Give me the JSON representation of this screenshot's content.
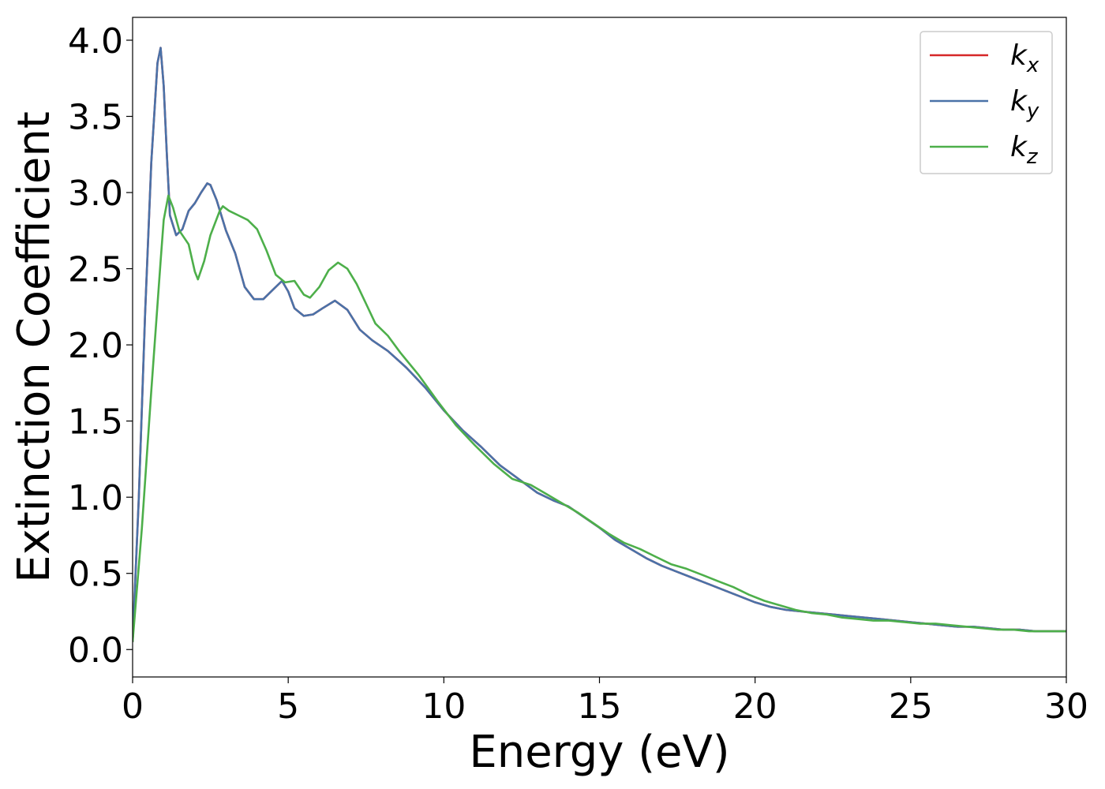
{
  "chart_data": {
    "type": "line",
    "xlabel": "Energy (eV)",
    "ylabel": "Extinction Coefficient",
    "xlim": [
      0,
      30
    ],
    "ylim": [
      -0.18,
      4.15
    ],
    "xticks": [
      0,
      5,
      10,
      15,
      20,
      25,
      30
    ],
    "xtick_labels": [
      "0",
      "5",
      "10",
      "15",
      "20",
      "25",
      "30"
    ],
    "yticks": [
      0.0,
      0.5,
      1.0,
      1.5,
      2.0,
      2.5,
      3.0,
      3.5,
      4.0
    ],
    "ytick_labels": [
      "0.0",
      "0.5",
      "1.0",
      "1.5",
      "2.0",
      "2.5",
      "3.0",
      "3.5",
      "4.0"
    ],
    "grid": false,
    "legend_position": "top-right",
    "series": [
      {
        "name": "k_x",
        "label_base": "k",
        "label_sub": "x",
        "color": "#d62728",
        "x": [
          0,
          0.2,
          0.4,
          0.6,
          0.8,
          0.9,
          1.0,
          1.1,
          1.2,
          1.4,
          1.6,
          1.8,
          2.0,
          2.2,
          2.4,
          2.5,
          2.7,
          3.0,
          3.3,
          3.6,
          3.9,
          4.2,
          4.5,
          4.8,
          5.0,
          5.2,
          5.5,
          5.8,
          6.1,
          6.5,
          6.9,
          7.3,
          7.7,
          8.2,
          8.8,
          9.4,
          10.0,
          10.6,
          11.2,
          11.8,
          12.4,
          13.0,
          13.5,
          14.0,
          14.5,
          15.0,
          15.5,
          16.0,
          16.5,
          17.0,
          17.5,
          18.0,
          18.5,
          19.0,
          19.5,
          20.0,
          20.5,
          21.0,
          21.5,
          22.0,
          22.5,
          23.0,
          23.5,
          24.0,
          24.5,
          25.0,
          25.5,
          26.0,
          26.5,
          27.0,
          27.5,
          28.0,
          28.5,
          29.0,
          29.5,
          30.0
        ],
        "values": [
          0.05,
          1.0,
          2.2,
          3.2,
          3.85,
          3.95,
          3.7,
          3.25,
          2.85,
          2.72,
          2.76,
          2.88,
          2.93,
          3.0,
          3.06,
          3.05,
          2.95,
          2.75,
          2.6,
          2.38,
          2.3,
          2.3,
          2.36,
          2.42,
          2.35,
          2.24,
          2.19,
          2.2,
          2.24,
          2.29,
          2.23,
          2.1,
          2.03,
          1.96,
          1.85,
          1.72,
          1.57,
          1.44,
          1.33,
          1.21,
          1.12,
          1.03,
          0.98,
          0.94,
          0.87,
          0.8,
          0.72,
          0.66,
          0.6,
          0.55,
          0.51,
          0.47,
          0.43,
          0.39,
          0.35,
          0.31,
          0.28,
          0.26,
          0.25,
          0.24,
          0.23,
          0.22,
          0.21,
          0.2,
          0.19,
          0.18,
          0.17,
          0.16,
          0.15,
          0.15,
          0.14,
          0.13,
          0.13,
          0.12,
          0.12,
          0.12
        ]
      },
      {
        "name": "k_y",
        "label_base": "k",
        "label_sub": "y",
        "color": "#4a72a8",
        "x": [
          0,
          0.2,
          0.4,
          0.6,
          0.8,
          0.9,
          1.0,
          1.1,
          1.2,
          1.4,
          1.6,
          1.8,
          2.0,
          2.2,
          2.4,
          2.5,
          2.7,
          3.0,
          3.3,
          3.6,
          3.9,
          4.2,
          4.5,
          4.8,
          5.0,
          5.2,
          5.5,
          5.8,
          6.1,
          6.5,
          6.9,
          7.3,
          7.7,
          8.2,
          8.8,
          9.4,
          10.0,
          10.6,
          11.2,
          11.8,
          12.4,
          13.0,
          13.5,
          14.0,
          14.5,
          15.0,
          15.5,
          16.0,
          16.5,
          17.0,
          17.5,
          18.0,
          18.5,
          19.0,
          19.5,
          20.0,
          20.5,
          21.0,
          21.5,
          22.0,
          22.5,
          23.0,
          23.5,
          24.0,
          24.5,
          25.0,
          25.5,
          26.0,
          26.5,
          27.0,
          27.5,
          28.0,
          28.5,
          29.0,
          29.5,
          30.0
        ],
        "values": [
          0.05,
          1.0,
          2.2,
          3.2,
          3.85,
          3.95,
          3.7,
          3.25,
          2.85,
          2.72,
          2.76,
          2.88,
          2.93,
          3.0,
          3.06,
          3.05,
          2.95,
          2.75,
          2.6,
          2.38,
          2.3,
          2.3,
          2.36,
          2.42,
          2.35,
          2.24,
          2.19,
          2.2,
          2.24,
          2.29,
          2.23,
          2.1,
          2.03,
          1.96,
          1.85,
          1.72,
          1.57,
          1.44,
          1.33,
          1.21,
          1.12,
          1.03,
          0.98,
          0.94,
          0.87,
          0.8,
          0.72,
          0.66,
          0.6,
          0.55,
          0.51,
          0.47,
          0.43,
          0.39,
          0.35,
          0.31,
          0.28,
          0.26,
          0.25,
          0.24,
          0.23,
          0.22,
          0.21,
          0.2,
          0.19,
          0.18,
          0.17,
          0.16,
          0.15,
          0.15,
          0.14,
          0.13,
          0.13,
          0.12,
          0.12,
          0.12
        ]
      },
      {
        "name": "k_z",
        "label_base": "k",
        "label_sub": "z",
        "color": "#4daf4a",
        "x": [
          0,
          0.3,
          0.6,
          0.9,
          1.0,
          1.15,
          1.3,
          1.5,
          1.8,
          2.0,
          2.1,
          2.3,
          2.5,
          2.8,
          2.9,
          3.1,
          3.4,
          3.7,
          4.0,
          4.3,
          4.6,
          4.9,
          5.2,
          5.5,
          5.7,
          6.0,
          6.3,
          6.6,
          6.9,
          7.2,
          7.5,
          7.8,
          8.2,
          8.6,
          9.2,
          9.8,
          10.4,
          11.0,
          11.6,
          12.2,
          12.8,
          13.3,
          13.8,
          14.3,
          14.8,
          15.3,
          15.8,
          16.3,
          16.8,
          17.3,
          17.8,
          18.3,
          18.8,
          19.3,
          19.8,
          20.3,
          20.8,
          21.3,
          21.8,
          22.3,
          22.8,
          23.3,
          23.8,
          24.3,
          24.8,
          25.3,
          25.8,
          26.3,
          26.8,
          27.3,
          27.8,
          28.3,
          28.8,
          29.3,
          30.0
        ],
        "values": [
          0.05,
          0.8,
          1.7,
          2.55,
          2.82,
          2.98,
          2.9,
          2.75,
          2.66,
          2.48,
          2.43,
          2.55,
          2.72,
          2.88,
          2.91,
          2.88,
          2.85,
          2.82,
          2.76,
          2.62,
          2.46,
          2.41,
          2.42,
          2.33,
          2.31,
          2.38,
          2.49,
          2.54,
          2.5,
          2.4,
          2.27,
          2.14,
          2.06,
          1.95,
          1.8,
          1.63,
          1.47,
          1.34,
          1.22,
          1.12,
          1.08,
          1.02,
          0.96,
          0.9,
          0.83,
          0.76,
          0.7,
          0.66,
          0.61,
          0.56,
          0.53,
          0.49,
          0.45,
          0.41,
          0.36,
          0.32,
          0.29,
          0.26,
          0.24,
          0.23,
          0.21,
          0.2,
          0.19,
          0.19,
          0.18,
          0.17,
          0.17,
          0.16,
          0.15,
          0.14,
          0.13,
          0.13,
          0.12,
          0.12,
          0.12
        ]
      }
    ]
  }
}
